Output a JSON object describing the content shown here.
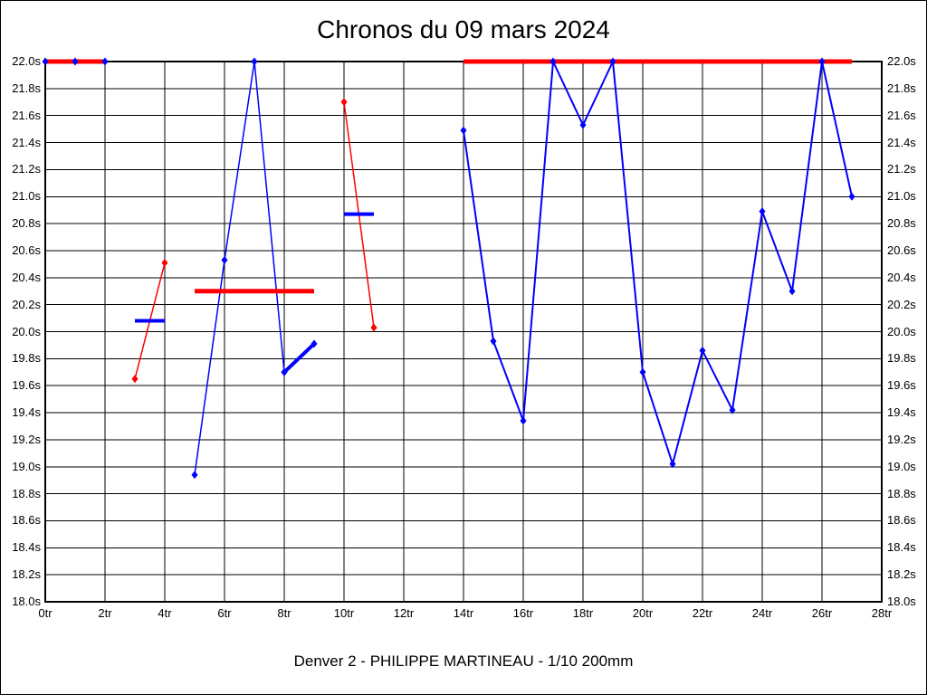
{
  "page": {
    "title": "Chronos du 09 mars 2024",
    "caption": "Denver 2 - PHILIPPE MARTINEAU - 1/10 200mm"
  },
  "colors": {
    "series_blue": "#0000ff",
    "series_red": "#ff0000",
    "grid": "#000000",
    "background": "#ffffff",
    "text": "#000000"
  },
  "chart_data": {
    "type": "line",
    "title": "Chronos du 09 mars 2024",
    "subtitle": "Denver 2 - PHILIPPE MARTINEAU - 1/10 200mm",
    "x_unit": "tr",
    "y_unit": "s",
    "xlim": [
      0,
      28
    ],
    "ylim": [
      18.0,
      22.0
    ],
    "x_tick_step": 2,
    "y_tick_step": 0.2,
    "grid": "on",
    "legend": "none",
    "x_tick_labels": [
      "0tr",
      "2tr",
      "4tr",
      "6tr",
      "8tr",
      "10tr",
      "12tr",
      "14tr",
      "16tr",
      "18tr",
      "20tr",
      "22tr",
      "24tr",
      "26tr",
      "28tr"
    ],
    "y_tick_labels_top_to_bottom": [
      "22.0s",
      "21.8s",
      "21.6s",
      "21.4s",
      "21.2s",
      "21.0s",
      "20.8s",
      "20.6s",
      "20.4s",
      "20.2s",
      "20.0s",
      "19.8s",
      "19.6s",
      "19.4s",
      "19.2s",
      "19.0s",
      "18.8s",
      "18.6s",
      "18.4s",
      "18.2s",
      "18.0s"
    ],
    "series": [
      {
        "name": "stint1-laps-blue",
        "color": "#0000ff",
        "style": "line",
        "line_width": 1.5,
        "markers": true,
        "points": [
          [
            0,
            22.0
          ],
          [
            1,
            22.0
          ],
          [
            2,
            22.0
          ]
        ]
      },
      {
        "name": "stint1-average-red",
        "color": "#ff0000",
        "style": "hline",
        "y": 22.0,
        "x_start": 0,
        "x_end": 2,
        "line_width": 5,
        "markers": false
      },
      {
        "name": "pit-laps-1-red",
        "color": "#ff0000",
        "style": "line",
        "line_width": 1.5,
        "markers": true,
        "points": [
          [
            3,
            19.65
          ],
          [
            4,
            20.51
          ]
        ]
      },
      {
        "name": "pit-laps-1-average-blue",
        "color": "#0000ff",
        "style": "hline",
        "y": 20.08,
        "x_start": 3,
        "x_end": 4,
        "line_width": 4,
        "markers": false
      },
      {
        "name": "stint2-laps-blue",
        "color": "#0000ff",
        "style": "line",
        "line_width": 1.5,
        "markers": true,
        "points": [
          [
            5,
            18.94
          ],
          [
            6,
            20.53
          ],
          [
            7,
            22.0
          ],
          [
            8,
            19.7
          ]
        ]
      },
      {
        "name": "stint2-final-laps-blue",
        "color": "#0000ff",
        "style": "line",
        "line_width": 4,
        "markers": true,
        "points": [
          [
            8,
            19.7
          ],
          [
            9,
            19.91
          ]
        ]
      },
      {
        "name": "stint2-average-red",
        "color": "#ff0000",
        "style": "hline",
        "y": 20.3,
        "x_start": 5,
        "x_end": 9,
        "line_width": 5,
        "markers": false
      },
      {
        "name": "pit-laps-2-red",
        "color": "#ff0000",
        "style": "line",
        "line_width": 1.5,
        "markers": true,
        "points": [
          [
            10,
            21.7
          ],
          [
            11,
            20.03
          ]
        ]
      },
      {
        "name": "pit-laps-2-average-blue",
        "color": "#0000ff",
        "style": "hline",
        "y": 20.87,
        "x_start": 10,
        "x_end": 11,
        "line_width": 4,
        "markers": false
      },
      {
        "name": "stint3-average-red",
        "color": "#ff0000",
        "style": "hline",
        "y": 22.0,
        "x_start": 14,
        "x_end": 27,
        "line_width": 5,
        "markers": false
      },
      {
        "name": "stint3-laps-blue",
        "color": "#0000ff",
        "style": "line",
        "line_width": 2,
        "markers": true,
        "points": [
          [
            14,
            21.49
          ],
          [
            15,
            19.93
          ],
          [
            16,
            19.34
          ],
          [
            17,
            22.0
          ],
          [
            18,
            21.53
          ],
          [
            19,
            22.0
          ],
          [
            20,
            19.7
          ],
          [
            21,
            19.02
          ],
          [
            22,
            19.86
          ],
          [
            23,
            19.42
          ],
          [
            24,
            20.89
          ],
          [
            25,
            20.3
          ],
          [
            26,
            22.0
          ],
          [
            27,
            21.0
          ]
        ]
      }
    ]
  }
}
